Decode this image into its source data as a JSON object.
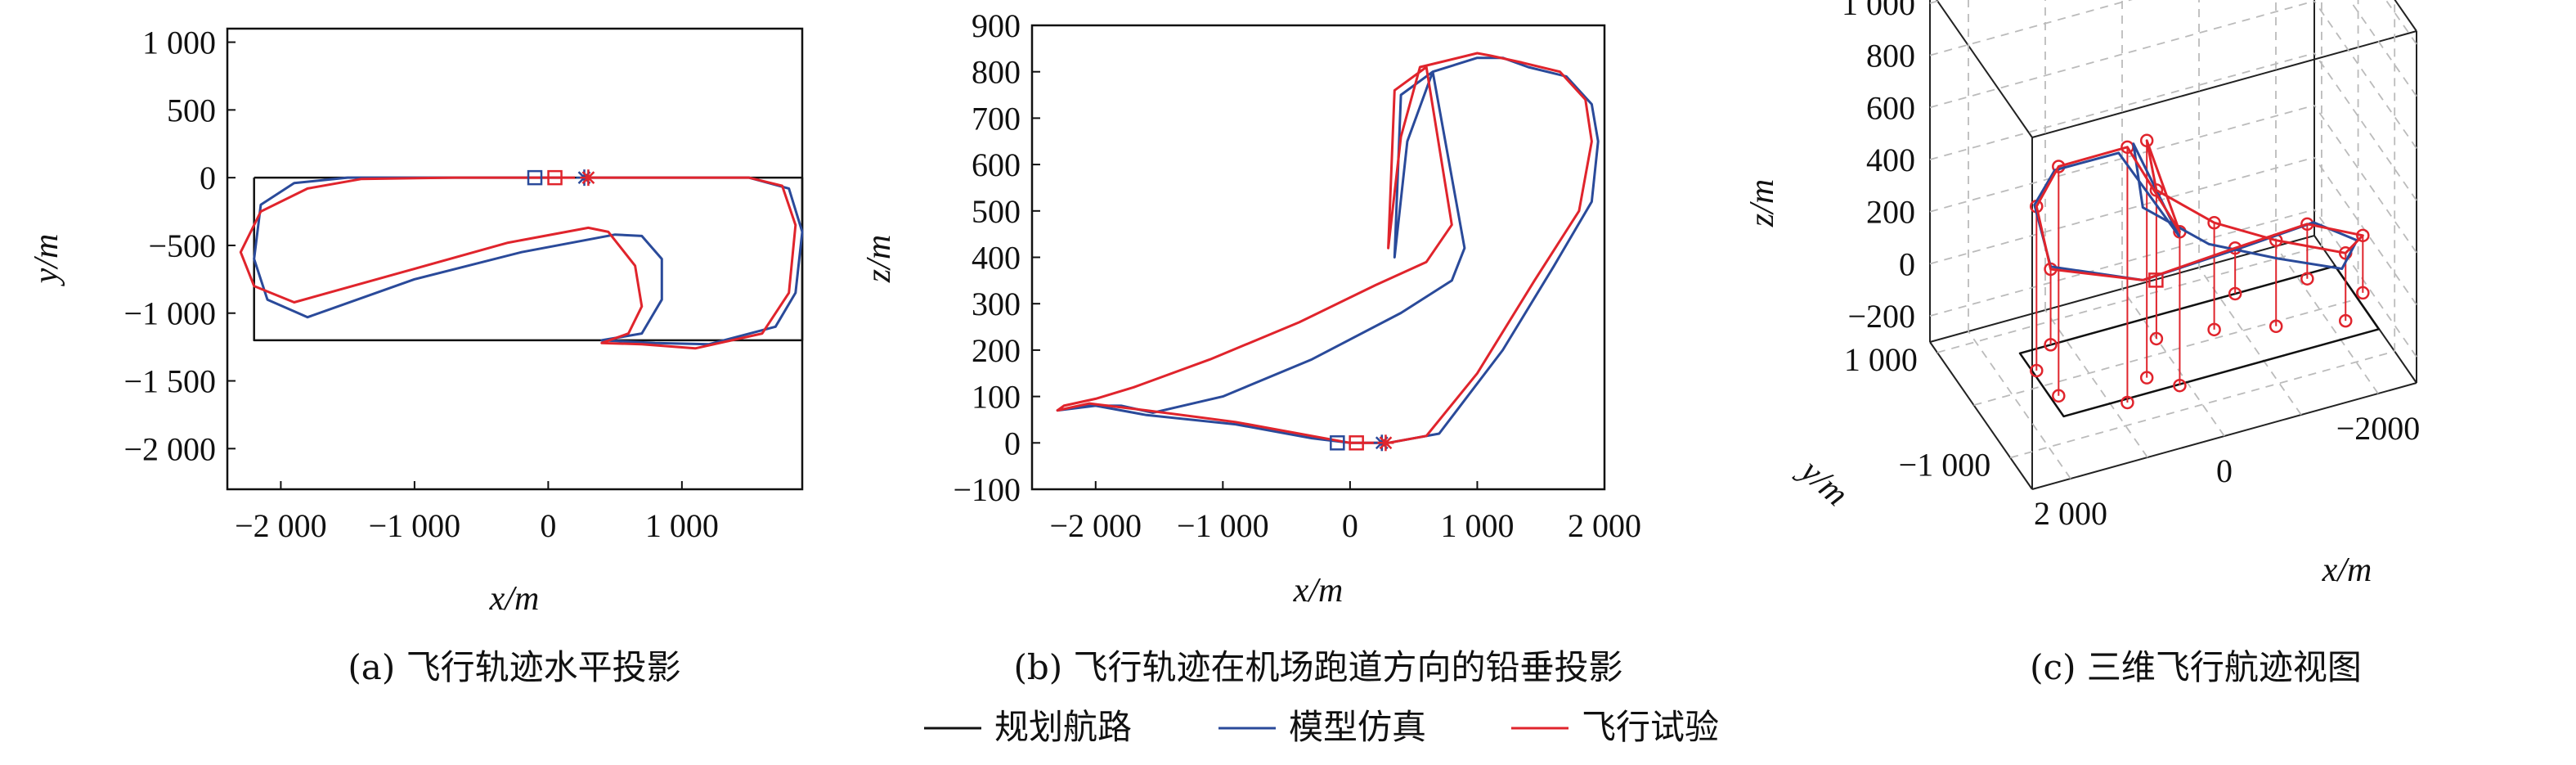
{
  "colors": {
    "planned": "#111111",
    "model": "#2a4a9a",
    "flight": "#e0242c"
  },
  "legend": {
    "planned": "规划航路",
    "model": "模型仿真",
    "flight": "飞行试验"
  },
  "chart_data": [
    {
      "id": "a",
      "type": "line",
      "caption": "(a) 飞行轨迹水平投影",
      "xlabel": "x/m",
      "ylabel": "y/m",
      "xlim": [
        -2400,
        1900
      ],
      "ylim": [
        -2300,
        1100
      ],
      "xticks": [
        -2000,
        -1000,
        0,
        1000
      ],
      "xtick_labels": [
        "−2 000",
        "−1 000",
        "0",
        "1 000"
      ],
      "yticks": [
        1000,
        500,
        0,
        -500,
        -1000,
        -1500,
        -2000
      ],
      "ytick_labels": [
        "1 000",
        "500",
        "0",
        "−500",
        "−1 000",
        "−1 500",
        "−2 000"
      ],
      "series": [
        {
          "key": "planned",
          "x": [
            -2200,
            1900,
            1900,
            -2200,
            -2200
          ],
          "y": [
            0,
            0,
            -1200,
            -1200,
            0
          ]
        },
        {
          "key": "model",
          "x": [
            300,
            1500,
            1800,
            1900,
            1850,
            1700,
            1200,
            800,
            400,
            700,
            850,
            850,
            700,
            500,
            -200,
            -1000,
            -1800,
            -2100,
            -2200,
            -2150,
            -1900,
            -1500,
            -800,
            100
          ],
          "y": [
            0,
            0,
            -80,
            -400,
            -850,
            -1100,
            -1230,
            -1220,
            -1200,
            -1150,
            -900,
            -600,
            -430,
            -420,
            -550,
            -750,
            -1030,
            -900,
            -600,
            -200,
            -40,
            0,
            0,
            0
          ]
        },
        {
          "key": "flight",
          "x": [
            300,
            1500,
            1750,
            1850,
            1800,
            1600,
            1100,
            700,
            400,
            600,
            700,
            650,
            450,
            300,
            -300,
            -1100,
            -1900,
            -2200,
            -2300,
            -2150,
            -1800,
            -1400,
            -700,
            200
          ],
          "y": [
            0,
            0,
            -60,
            -350,
            -850,
            -1150,
            -1260,
            -1230,
            -1220,
            -1150,
            -950,
            -650,
            -400,
            -370,
            -480,
            -700,
            -920,
            -800,
            -550,
            -250,
            -80,
            -10,
            0,
            0
          ]
        }
      ],
      "markers": {
        "model_square": [
          -100,
          0
        ],
        "flight_square": [
          50,
          0
        ],
        "model_star": [
          270,
          0
        ],
        "flight_star": [
          300,
          0
        ]
      }
    },
    {
      "id": "b",
      "type": "line",
      "caption": "(b) 飞行轨迹在机场跑道方向的铅垂投影",
      "xlabel": "x/m",
      "ylabel": "z/m",
      "xlim": [
        -2500,
        2000
      ],
      "ylim": [
        -100,
        900
      ],
      "xticks": [
        -2000,
        -1000,
        0,
        1000,
        2000
      ],
      "xtick_labels": [
        "−2 000",
        "−1 000",
        "0",
        "1 000",
        "2 000"
      ],
      "yticks": [
        900,
        800,
        700,
        600,
        500,
        400,
        300,
        200,
        100,
        0,
        -100
      ],
      "ytick_labels": [
        "900",
        "800",
        "700",
        "600",
        "500",
        "400",
        "300",
        "200",
        "100",
        "0",
        "−100"
      ],
      "series": [
        {
          "key": "model",
          "x": [
            300,
            700,
            1200,
            1600,
            1900,
            1950,
            1900,
            1700,
            1400,
            1200,
            1000,
            650,
            450,
            350,
            400,
            650,
            900,
            800,
            400,
            -300,
            -1000,
            -1550,
            -1800,
            -2100,
            -2300,
            -2000,
            -1600,
            -900,
            -300,
            0,
            300
          ],
          "y": [
            0,
            20,
            200,
            380,
            520,
            650,
            730,
            790,
            810,
            830,
            830,
            800,
            650,
            400,
            750,
            800,
            420,
            350,
            280,
            180,
            100,
            65,
            80,
            80,
            70,
            80,
            60,
            40,
            10,
            0,
            0
          ]
        },
        {
          "key": "flight",
          "x": [
            300,
            600,
            1000,
            1450,
            1800,
            1900,
            1850,
            1650,
            1350,
            1100,
            1000,
            550,
            400,
            300,
            350,
            600,
            800,
            600,
            200,
            -400,
            -1100,
            -1700,
            -2000,
            -2250,
            -2300,
            -2050,
            -1600,
            -900,
            -300,
            0,
            300
          ],
          "y": [
            0,
            15,
            150,
            350,
            500,
            650,
            740,
            800,
            820,
            835,
            840,
            810,
            660,
            420,
            760,
            810,
            470,
            390,
            340,
            260,
            180,
            120,
            95,
            80,
            70,
            85,
            70,
            45,
            15,
            0,
            0
          ]
        }
      ],
      "markers": {
        "model_square": [
          -100,
          0
        ],
        "flight_square": [
          50,
          0
        ],
        "model_star": [
          250,
          0
        ],
        "flight_star": [
          280,
          0
        ]
      }
    },
    {
      "id": "c",
      "type": "line",
      "caption": "(c) 三维飞行航迹视图",
      "xlabel": "x/m",
      "ylabel": "y/m",
      "zlabel": "z/m",
      "xlim": [
        -2500,
        2500
      ],
      "ylim": [
        -1600,
        1200
      ],
      "zlim": [
        -300,
        1050
      ],
      "xticks": [
        2000,
        0,
        -2000
      ],
      "xtick_labels": [
        "2 000",
        "0",
        "−2000"
      ],
      "yticks": [
        -1000,
        1000
      ],
      "ytick_labels": [
        "−1 000",
        "1 000"
      ],
      "zticks": [
        1000,
        800,
        600,
        400,
        200,
        0,
        -200
      ],
      "ztick_labels": [
        "1 000",
        "800",
        "600",
        "400",
        "200",
        "0",
        "−200"
      ],
      "series": [
        {
          "key": "planned",
          "x": [
            -2200,
            1900,
            1900,
            -2200,
            -2200
          ],
          "y": [
            0,
            0,
            -1200,
            -1200,
            0
          ],
          "z": [
            -150,
            -150,
            -150,
            -150,
            -150
          ]
        },
        {
          "key": "model",
          "x": [
            300,
            1500,
            1900,
            1850,
            1200,
            400,
            850,
            500,
            -300,
            -1100,
            -1800,
            -2200,
            -1900,
            -1000,
            300
          ],
          "y": [
            0,
            0,
            -400,
            -850,
            -1230,
            -1200,
            -900,
            -420,
            -550,
            -750,
            -1030,
            -600,
            -40,
            0,
            0
          ],
          "z": [
            0,
            150,
            500,
            720,
            810,
            420,
            750,
            380,
            200,
            120,
            80,
            70,
            50,
            20,
            0
          ]
        },
        {
          "key": "flight",
          "x": [
            300,
            1500,
            1850,
            1800,
            1100,
            400,
            700,
            300,
            -400,
            -1100,
            -1900,
            -2300,
            -1800,
            -900,
            300
          ],
          "y": [
            0,
            0,
            -350,
            -850,
            -1260,
            -1220,
            -950,
            -370,
            -480,
            -700,
            -920,
            -550,
            -80,
            0,
            0
          ],
          "z": [
            0,
            140,
            480,
            730,
            830,
            440,
            760,
            420,
            260,
            180,
            110,
            70,
            60,
            25,
            0
          ]
        }
      ]
    }
  ]
}
